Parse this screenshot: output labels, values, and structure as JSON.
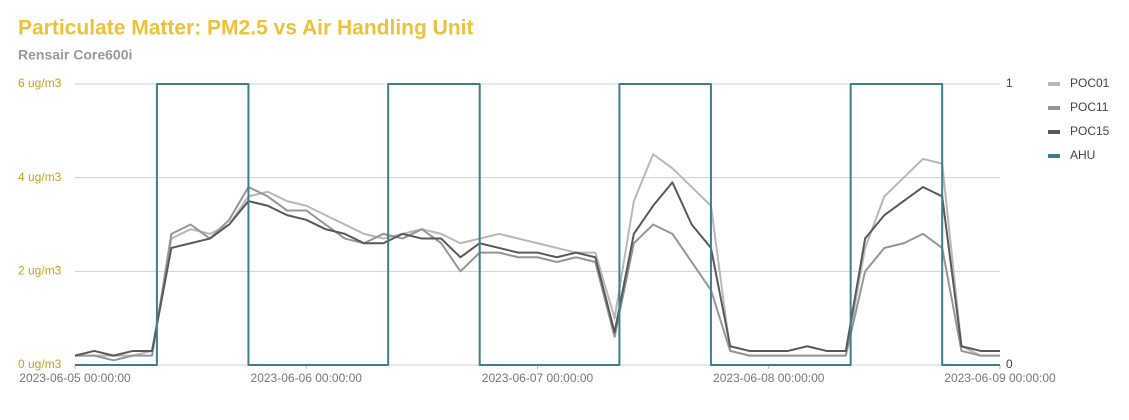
{
  "chart_data": {
    "type": "line",
    "title": "Particulate Matter: PM2.5 vs Air Handling Unit",
    "subtitle": "Rensair Core600i",
    "x": [
      "2023-06-05 00:00:00",
      "2023-06-05 02:00:00",
      "2023-06-05 04:00:00",
      "2023-06-05 06:00:00",
      "2023-06-05 08:00:00",
      "2023-06-05 10:00:00",
      "2023-06-05 12:00:00",
      "2023-06-05 14:00:00",
      "2023-06-05 16:00:00",
      "2023-06-05 18:00:00",
      "2023-06-05 20:00:00",
      "2023-06-05 22:00:00",
      "2023-06-06 00:00:00",
      "2023-06-06 02:00:00",
      "2023-06-06 04:00:00",
      "2023-06-06 06:00:00",
      "2023-06-06 08:00:00",
      "2023-06-06 10:00:00",
      "2023-06-06 12:00:00",
      "2023-06-06 14:00:00",
      "2023-06-06 16:00:00",
      "2023-06-06 18:00:00",
      "2023-06-06 20:00:00",
      "2023-06-06 22:00:00",
      "2023-06-07 00:00:00",
      "2023-06-07 02:00:00",
      "2023-06-07 04:00:00",
      "2023-06-07 06:00:00",
      "2023-06-07 08:00:00",
      "2023-06-07 10:00:00",
      "2023-06-07 12:00:00",
      "2023-06-07 14:00:00",
      "2023-06-07 16:00:00",
      "2023-06-07 18:00:00",
      "2023-06-07 20:00:00",
      "2023-06-07 22:00:00",
      "2023-06-08 00:00:00",
      "2023-06-08 02:00:00",
      "2023-06-08 04:00:00",
      "2023-06-08 06:00:00",
      "2023-06-08 08:00:00",
      "2023-06-08 10:00:00",
      "2023-06-08 12:00:00",
      "2023-06-08 14:00:00",
      "2023-06-08 16:00:00",
      "2023-06-08 18:00:00",
      "2023-06-08 20:00:00",
      "2023-06-08 22:00:00",
      "2023-06-09 00:00:00"
    ],
    "series": [
      {
        "name": "POC01",
        "color": "#b8b8b8",
        "values": [
          0.2,
          0.2,
          0.2,
          0.2,
          0.3,
          2.7,
          2.9,
          2.8,
          3.0,
          3.6,
          3.7,
          3.5,
          3.4,
          3.2,
          3.0,
          2.8,
          2.7,
          2.8,
          2.9,
          2.8,
          2.6,
          2.7,
          2.8,
          2.7,
          2.6,
          2.5,
          2.4,
          2.4,
          1.0,
          3.5,
          4.5,
          4.2,
          3.8,
          3.4,
          0.3,
          0.2,
          0.2,
          0.2,
          0.2,
          0.2,
          0.2,
          2.5,
          3.6,
          4.0,
          4.4,
          4.3,
          0.4,
          0.2,
          0.2
        ]
      },
      {
        "name": "POC11",
        "color": "#969696",
        "values": [
          0.2,
          0.2,
          0.1,
          0.2,
          0.2,
          2.8,
          3.0,
          2.7,
          3.1,
          3.8,
          3.6,
          3.3,
          3.3,
          3.0,
          2.7,
          2.6,
          2.8,
          2.7,
          2.9,
          2.6,
          2.0,
          2.4,
          2.4,
          2.3,
          2.3,
          2.2,
          2.3,
          2.2,
          0.6,
          2.6,
          3.0,
          2.8,
          2.2,
          1.6,
          0.3,
          0.2,
          0.2,
          0.2,
          0.2,
          0.2,
          0.2,
          2.0,
          2.5,
          2.6,
          2.8,
          2.5,
          0.3,
          0.2,
          0.2
        ]
      },
      {
        "name": "POC15",
        "color": "#595959",
        "values": [
          0.2,
          0.3,
          0.2,
          0.3,
          0.3,
          2.5,
          2.6,
          2.7,
          3.0,
          3.5,
          3.4,
          3.2,
          3.1,
          2.9,
          2.8,
          2.6,
          2.6,
          2.8,
          2.7,
          2.7,
          2.3,
          2.6,
          2.5,
          2.4,
          2.4,
          2.3,
          2.4,
          2.3,
          0.7,
          2.8,
          3.4,
          3.9,
          3.0,
          2.5,
          0.4,
          0.3,
          0.3,
          0.3,
          0.4,
          0.3,
          0.3,
          2.7,
          3.2,
          3.5,
          3.8,
          3.6,
          0.4,
          0.3,
          0.3
        ]
      },
      {
        "name": "AHU",
        "color": "#3e7f8b",
        "axis": "y2",
        "x": [
          "2023-06-05 00:00:00",
          "2023-06-05 08:30:00",
          "2023-06-05 08:30:00",
          "2023-06-05 18:00:00",
          "2023-06-05 18:00:00",
          "2023-06-06 08:30:00",
          "2023-06-06 08:30:00",
          "2023-06-06 18:00:00",
          "2023-06-06 18:00:00",
          "2023-06-07 08:30:00",
          "2023-06-07 08:30:00",
          "2023-06-07 18:00:00",
          "2023-06-07 18:00:00",
          "2023-06-08 08:30:00",
          "2023-06-08 08:30:00",
          "2023-06-08 18:00:00",
          "2023-06-08 18:00:00",
          "2023-06-09 00:00:00"
        ],
        "values": [
          0,
          0,
          1,
          1,
          0,
          0,
          1,
          1,
          0,
          0,
          1,
          1,
          0,
          0,
          1,
          1,
          0,
          0
        ]
      }
    ],
    "xlim": [
      "2023-06-05 00:00:00",
      "2023-06-09 00:00:00"
    ],
    "xticks": [
      "2023-06-05 00:00:00",
      "2023-06-06 00:00:00",
      "2023-06-07 00:00:00",
      "2023-06-08 00:00:00",
      "2023-06-09 00:00:00"
    ],
    "ylim": [
      0,
      6
    ],
    "yticks": [
      {
        "value": 0,
        "label": "0 ug/m3"
      },
      {
        "value": 2,
        "label": "2 ug/m3"
      },
      {
        "value": 4,
        "label": "4 ug/m3"
      },
      {
        "value": 6,
        "label": "6 ug/m3"
      }
    ],
    "y2lim": [
      0,
      1
    ],
    "y2ticks": [
      0,
      1
    ],
    "grid": true,
    "legend": "right"
  }
}
